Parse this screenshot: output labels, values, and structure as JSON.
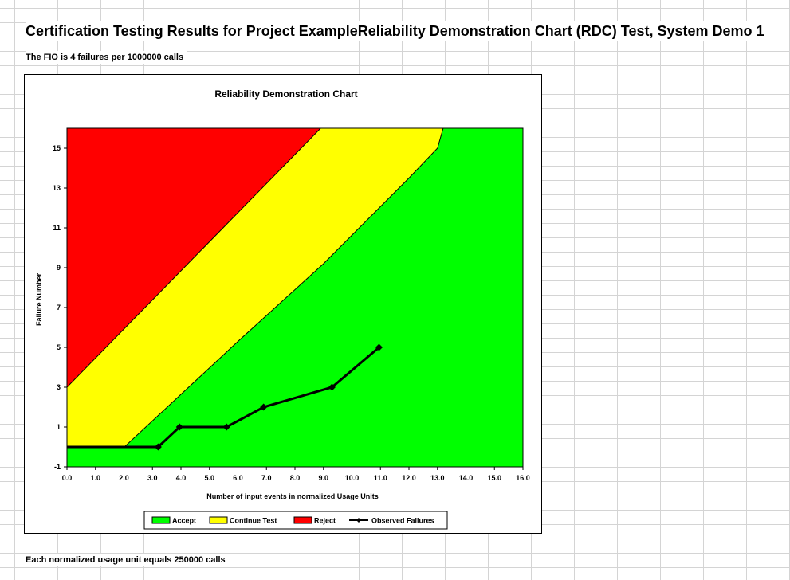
{
  "sheet": {
    "title": "Certification Testing Results for Project ExampleReliability Demonstration Chart (RDC) Test, System Demo 1",
    "fio_note": "The FIO is 4 failures per 1000000 calls",
    "unit_note": "Each normalized usage unit equals 250000 calls"
  },
  "chart_data": {
    "type": "line",
    "title": "Reliability Demonstration Chart",
    "xlabel": "Number of input events in normalized Usage Units",
    "ylabel": "Failure Number",
    "xlim": [
      0,
      16
    ],
    "ylim": [
      -1,
      16
    ],
    "x_ticks": [
      "0.0",
      "1.0",
      "2.0",
      "3.0",
      "4.0",
      "5.0",
      "6.0",
      "7.0",
      "8.0",
      "9.0",
      "10.0",
      "11.0",
      "12.0",
      "13.0",
      "14.0",
      "15.0",
      "16.0"
    ],
    "y_ticks": [
      -1,
      1,
      3,
      5,
      7,
      9,
      11,
      13,
      15
    ],
    "regions": {
      "reject_boundary": [
        [
          0,
          3
        ],
        [
          8.9,
          16
        ]
      ],
      "accept_boundary": [
        [
          0,
          0
        ],
        [
          2.05,
          0
        ],
        [
          2.05,
          0.05
        ],
        [
          6,
          5.3
        ],
        [
          9,
          9.2
        ],
        [
          12,
          13.5
        ],
        [
          13,
          15
        ],
        [
          13.2,
          16
        ]
      ]
    },
    "series": [
      {
        "name": "Observed Failures",
        "x": [
          0,
          3.2,
          3.95,
          5.6,
          6.9,
          9.3,
          10.95
        ],
        "y": [
          0,
          0,
          1,
          1,
          2,
          3,
          5
        ]
      }
    ],
    "legend": {
      "placement": "bottom",
      "entries": [
        {
          "label": "Accept",
          "color": "#00ff00",
          "kind": "box"
        },
        {
          "label": "Continue Test",
          "color": "#ffff00",
          "kind": "box"
        },
        {
          "label": "Reject",
          "color": "#ff0000",
          "kind": "box"
        },
        {
          "label": "Observed Failures",
          "color": "#000000",
          "kind": "line"
        }
      ]
    },
    "colors": {
      "accept": "#00ff00",
      "continue": "#ffff00",
      "reject": "#ff0000",
      "line": "#000000"
    }
  }
}
